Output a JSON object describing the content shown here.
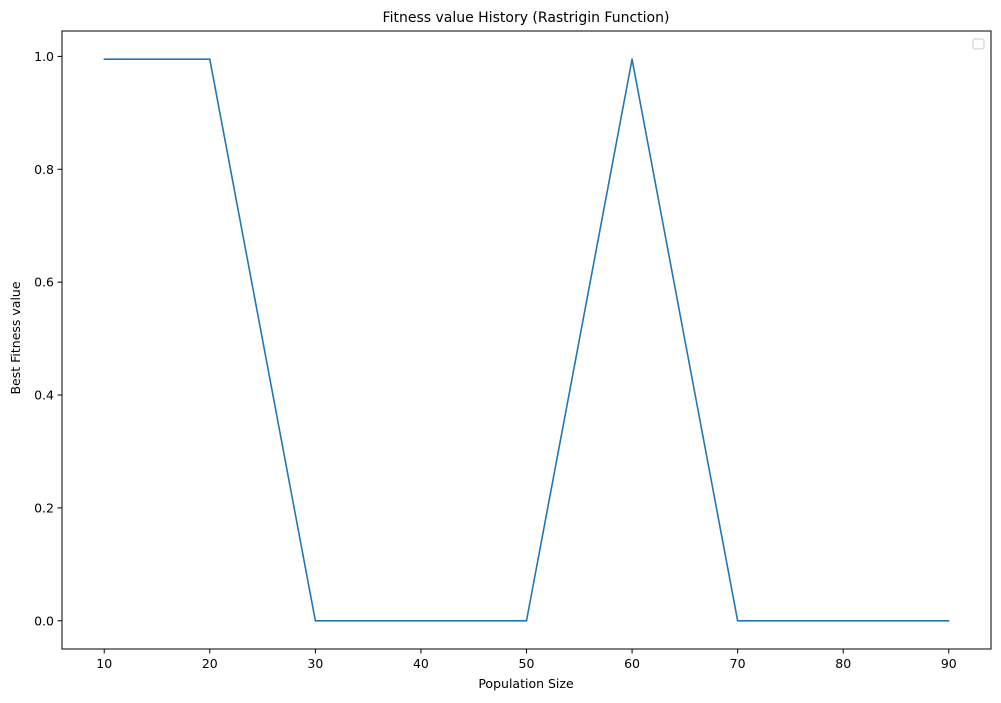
{
  "chart_data": {
    "type": "line",
    "title": "Fitness value History (Rastrigin Function)",
    "xlabel": "Population Size",
    "ylabel": "Best Fitness value",
    "x": [
      10,
      20,
      30,
      40,
      50,
      60,
      70,
      80,
      90
    ],
    "series": [
      {
        "values": [
          0.995,
          0.995,
          0.0,
          0.0,
          0.0,
          0.995,
          0.0,
          0.0,
          0.0
        ],
        "color": "#1f77b4"
      }
    ],
    "xticks": [
      10,
      20,
      30,
      40,
      50,
      60,
      70,
      80,
      90
    ],
    "xtick_labels": [
      "10",
      "20",
      "30",
      "40",
      "50",
      "60",
      "70",
      "80",
      "90"
    ],
    "yticks": [
      0.0,
      0.2,
      0.4,
      0.6,
      0.8,
      1.0
    ],
    "ytick_labels": [
      "0.0",
      "0.2",
      "0.4",
      "0.6",
      "0.8",
      "1.0"
    ],
    "xlim": [
      6,
      94
    ],
    "ylim": [
      -0.05,
      1.045
    ],
    "grid": false,
    "legend": {
      "placement": "top-right",
      "entries": []
    }
  }
}
